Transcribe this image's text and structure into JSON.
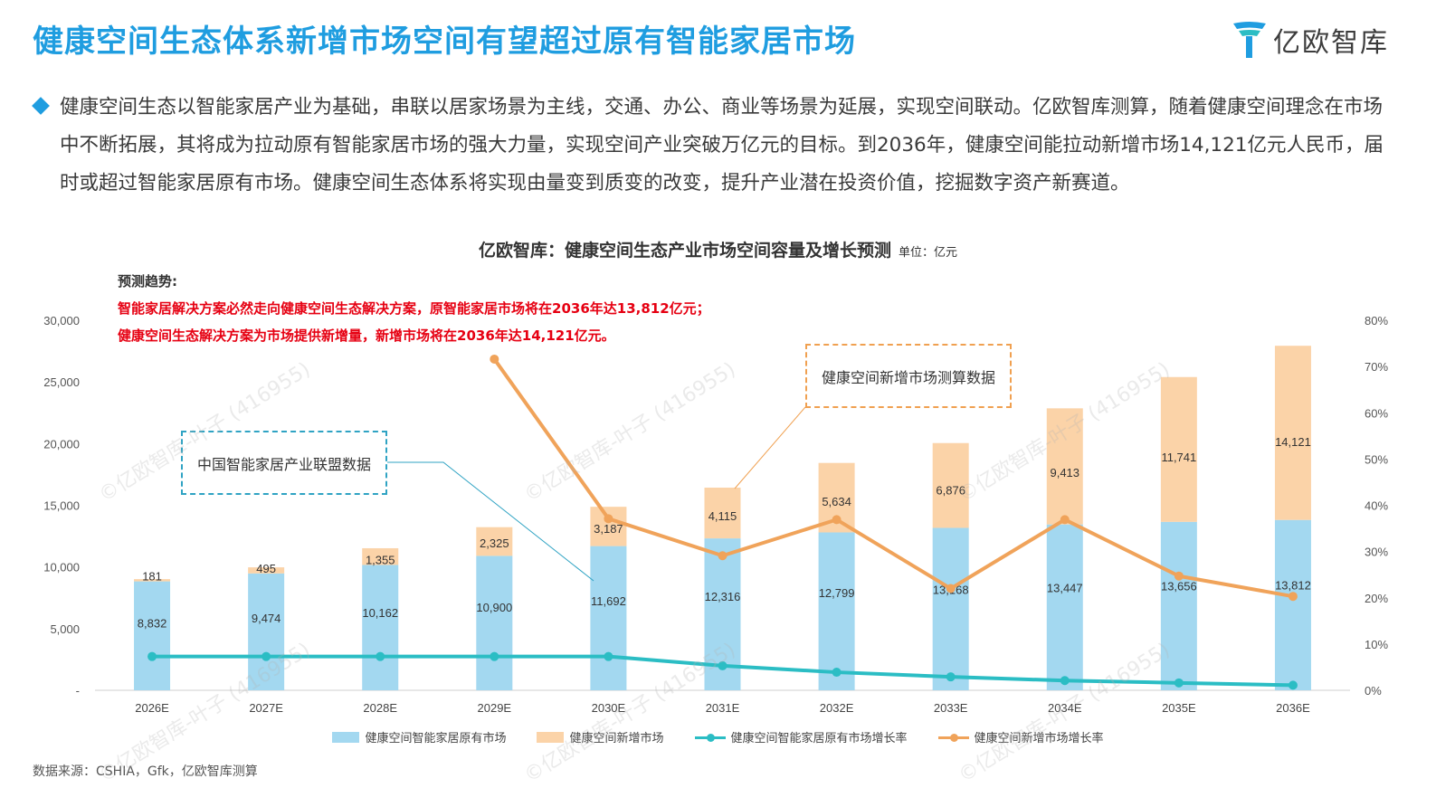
{
  "header": {
    "title": "健康空间生态体系新增市场空间有望超过原有智能家居市场",
    "logo_text": "亿欧智库"
  },
  "summary": "健康空间生态以智能家居产业为基础，串联以居家场景为主线，交通、办公、商业等场景为延展，实现空间联动。亿欧智库测算，随着健康空间理念在市场中不断拓展，其将成为拉动原有智能家居市场的强大力量，实现空间产业突破万亿元的目标。到2036年，健康空间能拉动新增市场14,121亿元人民币，届时或超过智能家居原有市场。健康空间生态体系将实现由量变到质变的改变，提升产业潜在投资价值，挖掘数字资产新赛道。",
  "forecast": {
    "label": "预测趋势:",
    "line1": "智能家居解决方案必然走向健康空间生态解决方案，原智能家居市场将在2036年达13,812亿元；",
    "line2": "健康空间生态解决方案为市场提供新增量，新增市场将在2036年达14,121亿元。"
  },
  "callouts": {
    "left": "中国智能家居产业联盟数据",
    "right": "健康空间新增市场测算数据"
  },
  "source": "数据来源：CSHIA，Gfk，亿欧智库测算",
  "watermark": "©亿欧智库-叶子 (416955)",
  "colors": {
    "title": "#1f9de0",
    "existing_bar": "#a3d8f0",
    "new_bar": "#fbd3a8",
    "existing_rate_line": "#2bbdc4",
    "new_rate_line": "#f0a35a",
    "forecast_text": "#e60012"
  },
  "chart_data": {
    "type": "bar",
    "title": "亿欧智库：健康空间生态产业市场空间容量及增长预测",
    "unit": "单位：亿元",
    "categories": [
      "2026E",
      "2027E",
      "2028E",
      "2029E",
      "2030E",
      "2031E",
      "2032E",
      "2033E",
      "2034E",
      "2035E",
      "2036E"
    ],
    "stacked": true,
    "series": [
      {
        "name": "健康空间智能家居原有市场",
        "type": "bar",
        "axis": "left",
        "values": [
          8832,
          9474,
          10162,
          10900,
          11692,
          12316,
          12799,
          13168,
          13447,
          13656,
          13812
        ]
      },
      {
        "name": "健康空间新增市场",
        "type": "bar",
        "axis": "left",
        "values": [
          181,
          495,
          1355,
          2325,
          3187,
          4115,
          5634,
          6876,
          9413,
          11741,
          14121
        ]
      },
      {
        "name": "健康空间智能家居原有市场增长率",
        "type": "line",
        "axis": "right",
        "values": [
          7.3,
          7.3,
          7.3,
          7.3,
          7.3,
          5.3,
          3.9,
          2.9,
          2.1,
          1.6,
          1.1
        ]
      },
      {
        "name": "健康空间新增市场增长率",
        "type": "line",
        "axis": "right",
        "values": [
          null,
          null,
          null,
          71.6,
          37.1,
          29.1,
          36.9,
          22.0,
          36.9,
          24.7,
          20.3
        ]
      }
    ],
    "ylim": [
      0,
      30000
    ],
    "y_ticks": [
      "-",
      "5,000",
      "10,000",
      "15,000",
      "20,000",
      "25,000",
      "30,000"
    ],
    "y2lim": [
      0,
      80
    ],
    "y2_ticks": [
      "0%",
      "10%",
      "20%",
      "30%",
      "40%",
      "50%",
      "60%",
      "70%",
      "80%"
    ],
    "existing_labels": [
      "8,832",
      "9,474",
      "10,162",
      "10,900",
      "11,692",
      "12,316",
      "12,799",
      "13,168",
      "13,447",
      "13,656",
      "13,812"
    ],
    "new_labels": [
      "181",
      "495",
      "1,355",
      "2,325",
      "3,187",
      "4,115",
      "5,634",
      "6,876",
      "9,413",
      "11,741",
      "14,121"
    ],
    "legend_position": "bottom",
    "grid": false
  }
}
